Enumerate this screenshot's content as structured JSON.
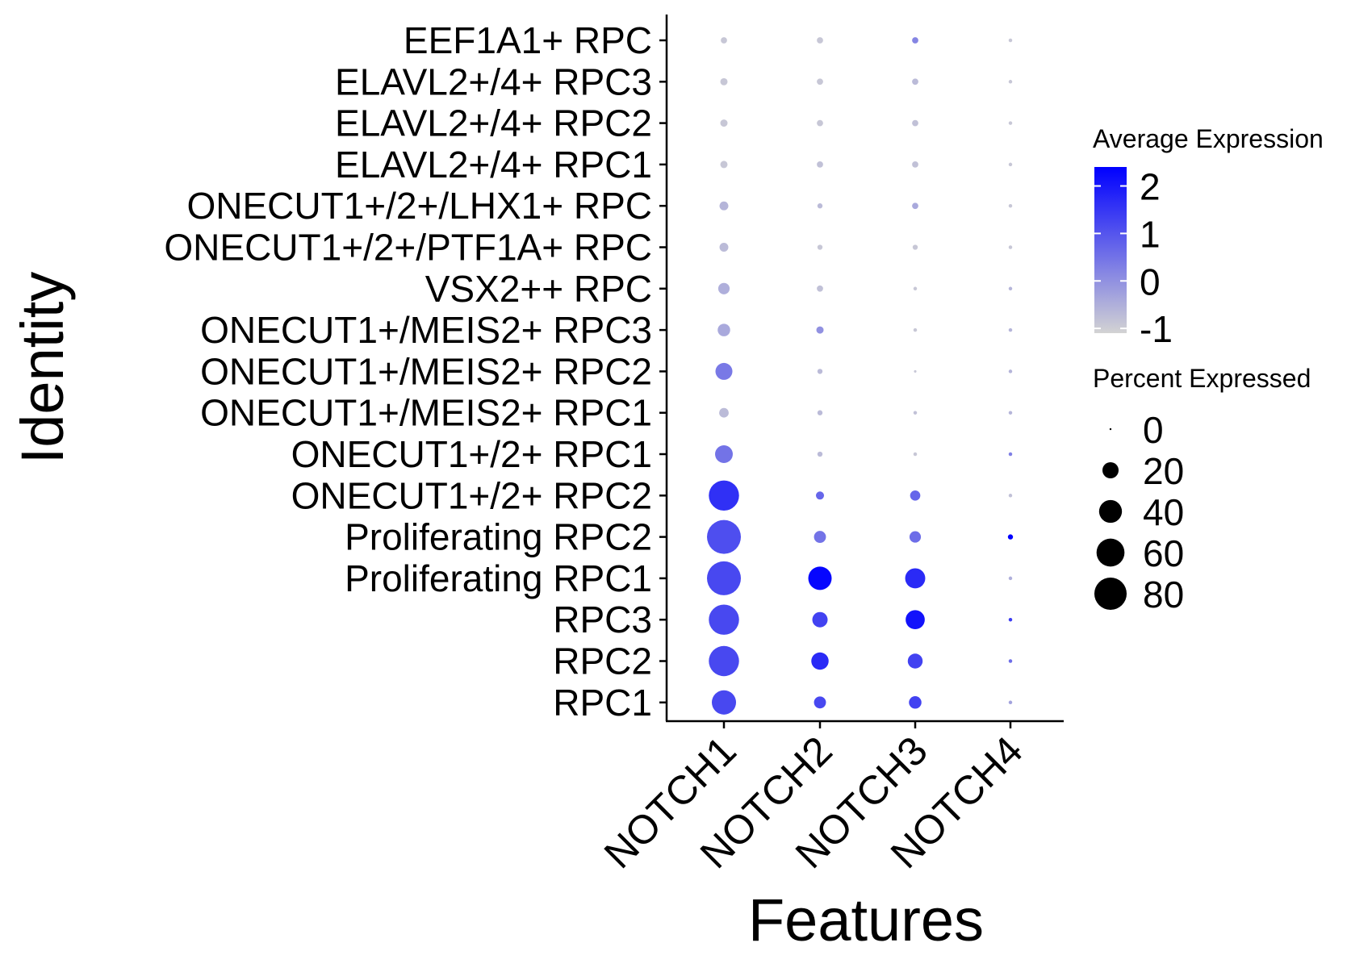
{
  "chart_data": {
    "type": "dot",
    "xlabel": "Features",
    "ylabel": "Identity",
    "features": [
      "NOTCH1",
      "NOTCH2",
      "NOTCH3",
      "NOTCH4"
    ],
    "identities": [
      "EEF1A1+ RPC",
      "ELAVL2+/4+ RPC3",
      "ELAVL2+/4+ RPC2",
      "ELAVL2+/4+ RPC1",
      "ONECUT1+/2+/LHX1+ RPC",
      "ONECUT1+/2+/PTF1A+ RPC",
      "VSX2++ RPC",
      "ONECUT1+/MEIS2+ RPC3",
      "ONECUT1+/MEIS2+ RPC2",
      "ONECUT1+/MEIS2+ RPC1",
      "ONECUT1+/2+ RPC1",
      "ONECUT1+/2+ RPC2",
      "Proliferating RPC2",
      "Proliferating RPC1",
      "RPC3",
      "RPC2",
      "RPC1"
    ],
    "percent_expressed": [
      [
        3,
        3,
        3,
        1
      ],
      [
        4,
        3,
        3,
        1
      ],
      [
        4,
        3,
        3,
        1
      ],
      [
        4,
        3,
        3,
        1
      ],
      [
        6,
        2,
        3,
        1
      ],
      [
        6,
        2,
        2,
        1
      ],
      [
        10,
        3,
        1,
        1
      ],
      [
        12,
        4,
        1,
        1
      ],
      [
        22,
        2,
        0.5,
        1
      ],
      [
        7,
        2,
        1,
        1
      ],
      [
        24,
        2,
        1,
        1
      ],
      [
        70,
        5,
        8,
        1
      ],
      [
        88,
        11,
        10,
        2
      ],
      [
        88,
        42,
        31,
        1
      ],
      [
        70,
        18,
        28,
        1
      ],
      [
        70,
        23,
        17,
        1
      ],
      [
        45,
        11,
        12,
        1
      ]
    ],
    "average_expression": [
      [
        -0.9,
        -0.9,
        0.2,
        -0.9
      ],
      [
        -0.9,
        -0.9,
        -0.7,
        -0.9
      ],
      [
        -0.9,
        -0.9,
        -0.8,
        -0.9
      ],
      [
        -0.9,
        -0.8,
        -0.8,
        -0.9
      ],
      [
        -0.6,
        -0.7,
        -0.4,
        -0.9
      ],
      [
        -0.7,
        -0.9,
        -0.9,
        -0.9
      ],
      [
        -0.5,
        -0.8,
        -0.9,
        -0.6
      ],
      [
        -0.4,
        0.0,
        -0.9,
        -0.6
      ],
      [
        0.4,
        -0.7,
        -0.9,
        -0.6
      ],
      [
        -0.7,
        -0.7,
        -0.8,
        -0.6
      ],
      [
        0.5,
        -0.7,
        -0.9,
        0.3
      ],
      [
        1.6,
        0.7,
        0.7,
        -0.8
      ],
      [
        1.1,
        0.5,
        0.6,
        2.4
      ],
      [
        1.2,
        2.3,
        1.7,
        -0.5
      ],
      [
        1.2,
        1.3,
        2.1,
        1.4
      ],
      [
        1.2,
        1.7,
        1.3,
        0.6
      ],
      [
        1.2,
        1.2,
        1.3,
        -0.3
      ]
    ],
    "color_legend": {
      "title": "Average Expression",
      "ticks": [
        "2",
        "1",
        "0",
        "-1"
      ],
      "tick_values": [
        2,
        1,
        0,
        -1
      ],
      "range": [
        -1.1,
        2.4
      ],
      "low_color": "#D3D3D3",
      "high_color": "#0000FF"
    },
    "size_legend": {
      "title": "Percent Expressed",
      "ticks": [
        "0",
        "20",
        "40",
        "60",
        "80"
      ],
      "tick_values": [
        0,
        20,
        40,
        60,
        80
      ]
    },
    "size_scale_max": 88,
    "grid": false,
    "legend_position": "right"
  }
}
